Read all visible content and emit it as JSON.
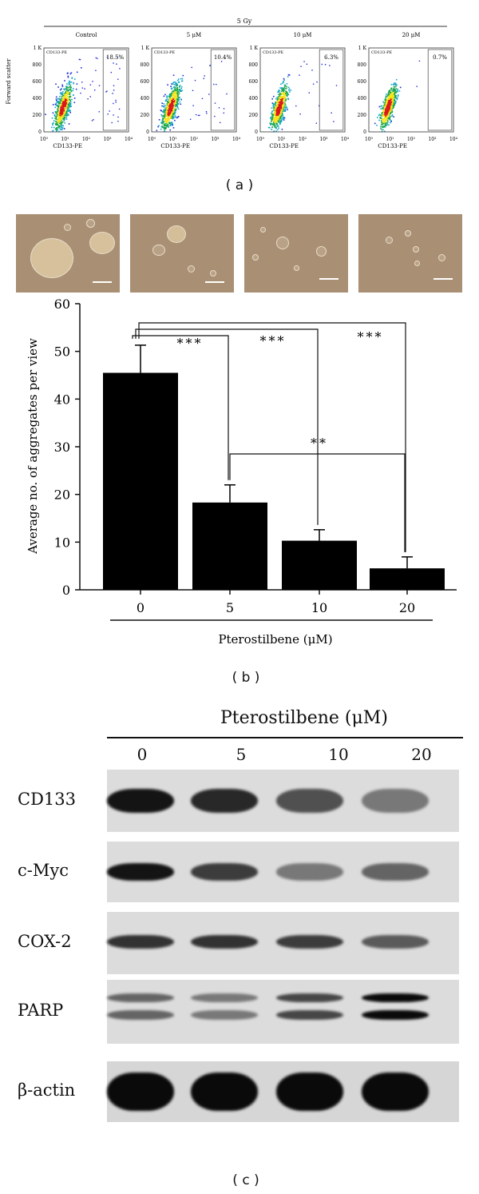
{
  "panel_a": {
    "header": "5 Gy",
    "y_axis_label": "Forward scatter",
    "x_axis_label": "CD133-PE",
    "y_ticks": [
      "1 K",
      "800",
      "600",
      "400",
      "200",
      "0"
    ],
    "x_ticks": [
      "10⁰",
      "10¹",
      "10²",
      "10³",
      "10⁴"
    ],
    "gate_label": "CD133-PE",
    "plots": [
      {
        "title": "Control",
        "percent": "18.5%"
      },
      {
        "title": "5 μM",
        "percent": "10.4%"
      },
      {
        "title": "10 μM",
        "percent": "6.3%"
      },
      {
        "title": "20 μM",
        "percent": "0.7%"
      }
    ],
    "label": "( a )"
  },
  "panel_b": {
    "label": "( b )",
    "chart_data": {
      "type": "bar",
      "categories": [
        "0",
        "5",
        "10",
        "20"
      ],
      "values": [
        45.5,
        18.3,
        10.3,
        4.5
      ],
      "errors": [
        5.8,
        3.7,
        2.3,
        2.4
      ],
      "ylabel": "Average no. of aggregates per view",
      "xlabel": "Pterostilbene (μM)",
      "ylim": [
        0,
        60
      ],
      "y_ticks": [
        0,
        10,
        20,
        30,
        40,
        50,
        60
      ],
      "significance": [
        {
          "from": "0",
          "to": "5",
          "label": "***"
        },
        {
          "from": "0",
          "to": "10",
          "label": "***"
        },
        {
          "from": "0",
          "to": "20",
          "label": "***"
        },
        {
          "from": "5",
          "to": "20",
          "label": "**"
        }
      ]
    }
  },
  "panel_c": {
    "label": "( c )",
    "title": "Pterostilbene (μM)",
    "lanes": [
      "0",
      "5",
      "10",
      "20"
    ],
    "blots": [
      {
        "name": "CD133",
        "intensity": [
          0.95,
          0.85,
          0.65,
          0.45
        ]
      },
      {
        "name": "c-Myc",
        "intensity": [
          0.95,
          0.75,
          0.45,
          0.55
        ]
      },
      {
        "name": "COX-2",
        "intensity": [
          0.8,
          0.8,
          0.75,
          0.6
        ]
      },
      {
        "name": "PARP",
        "intensity": [
          0.55,
          0.45,
          0.7,
          1.0
        ]
      },
      {
        "name": "β-actin",
        "intensity": [
          1.0,
          1.0,
          1.0,
          1.0
        ]
      }
    ]
  }
}
